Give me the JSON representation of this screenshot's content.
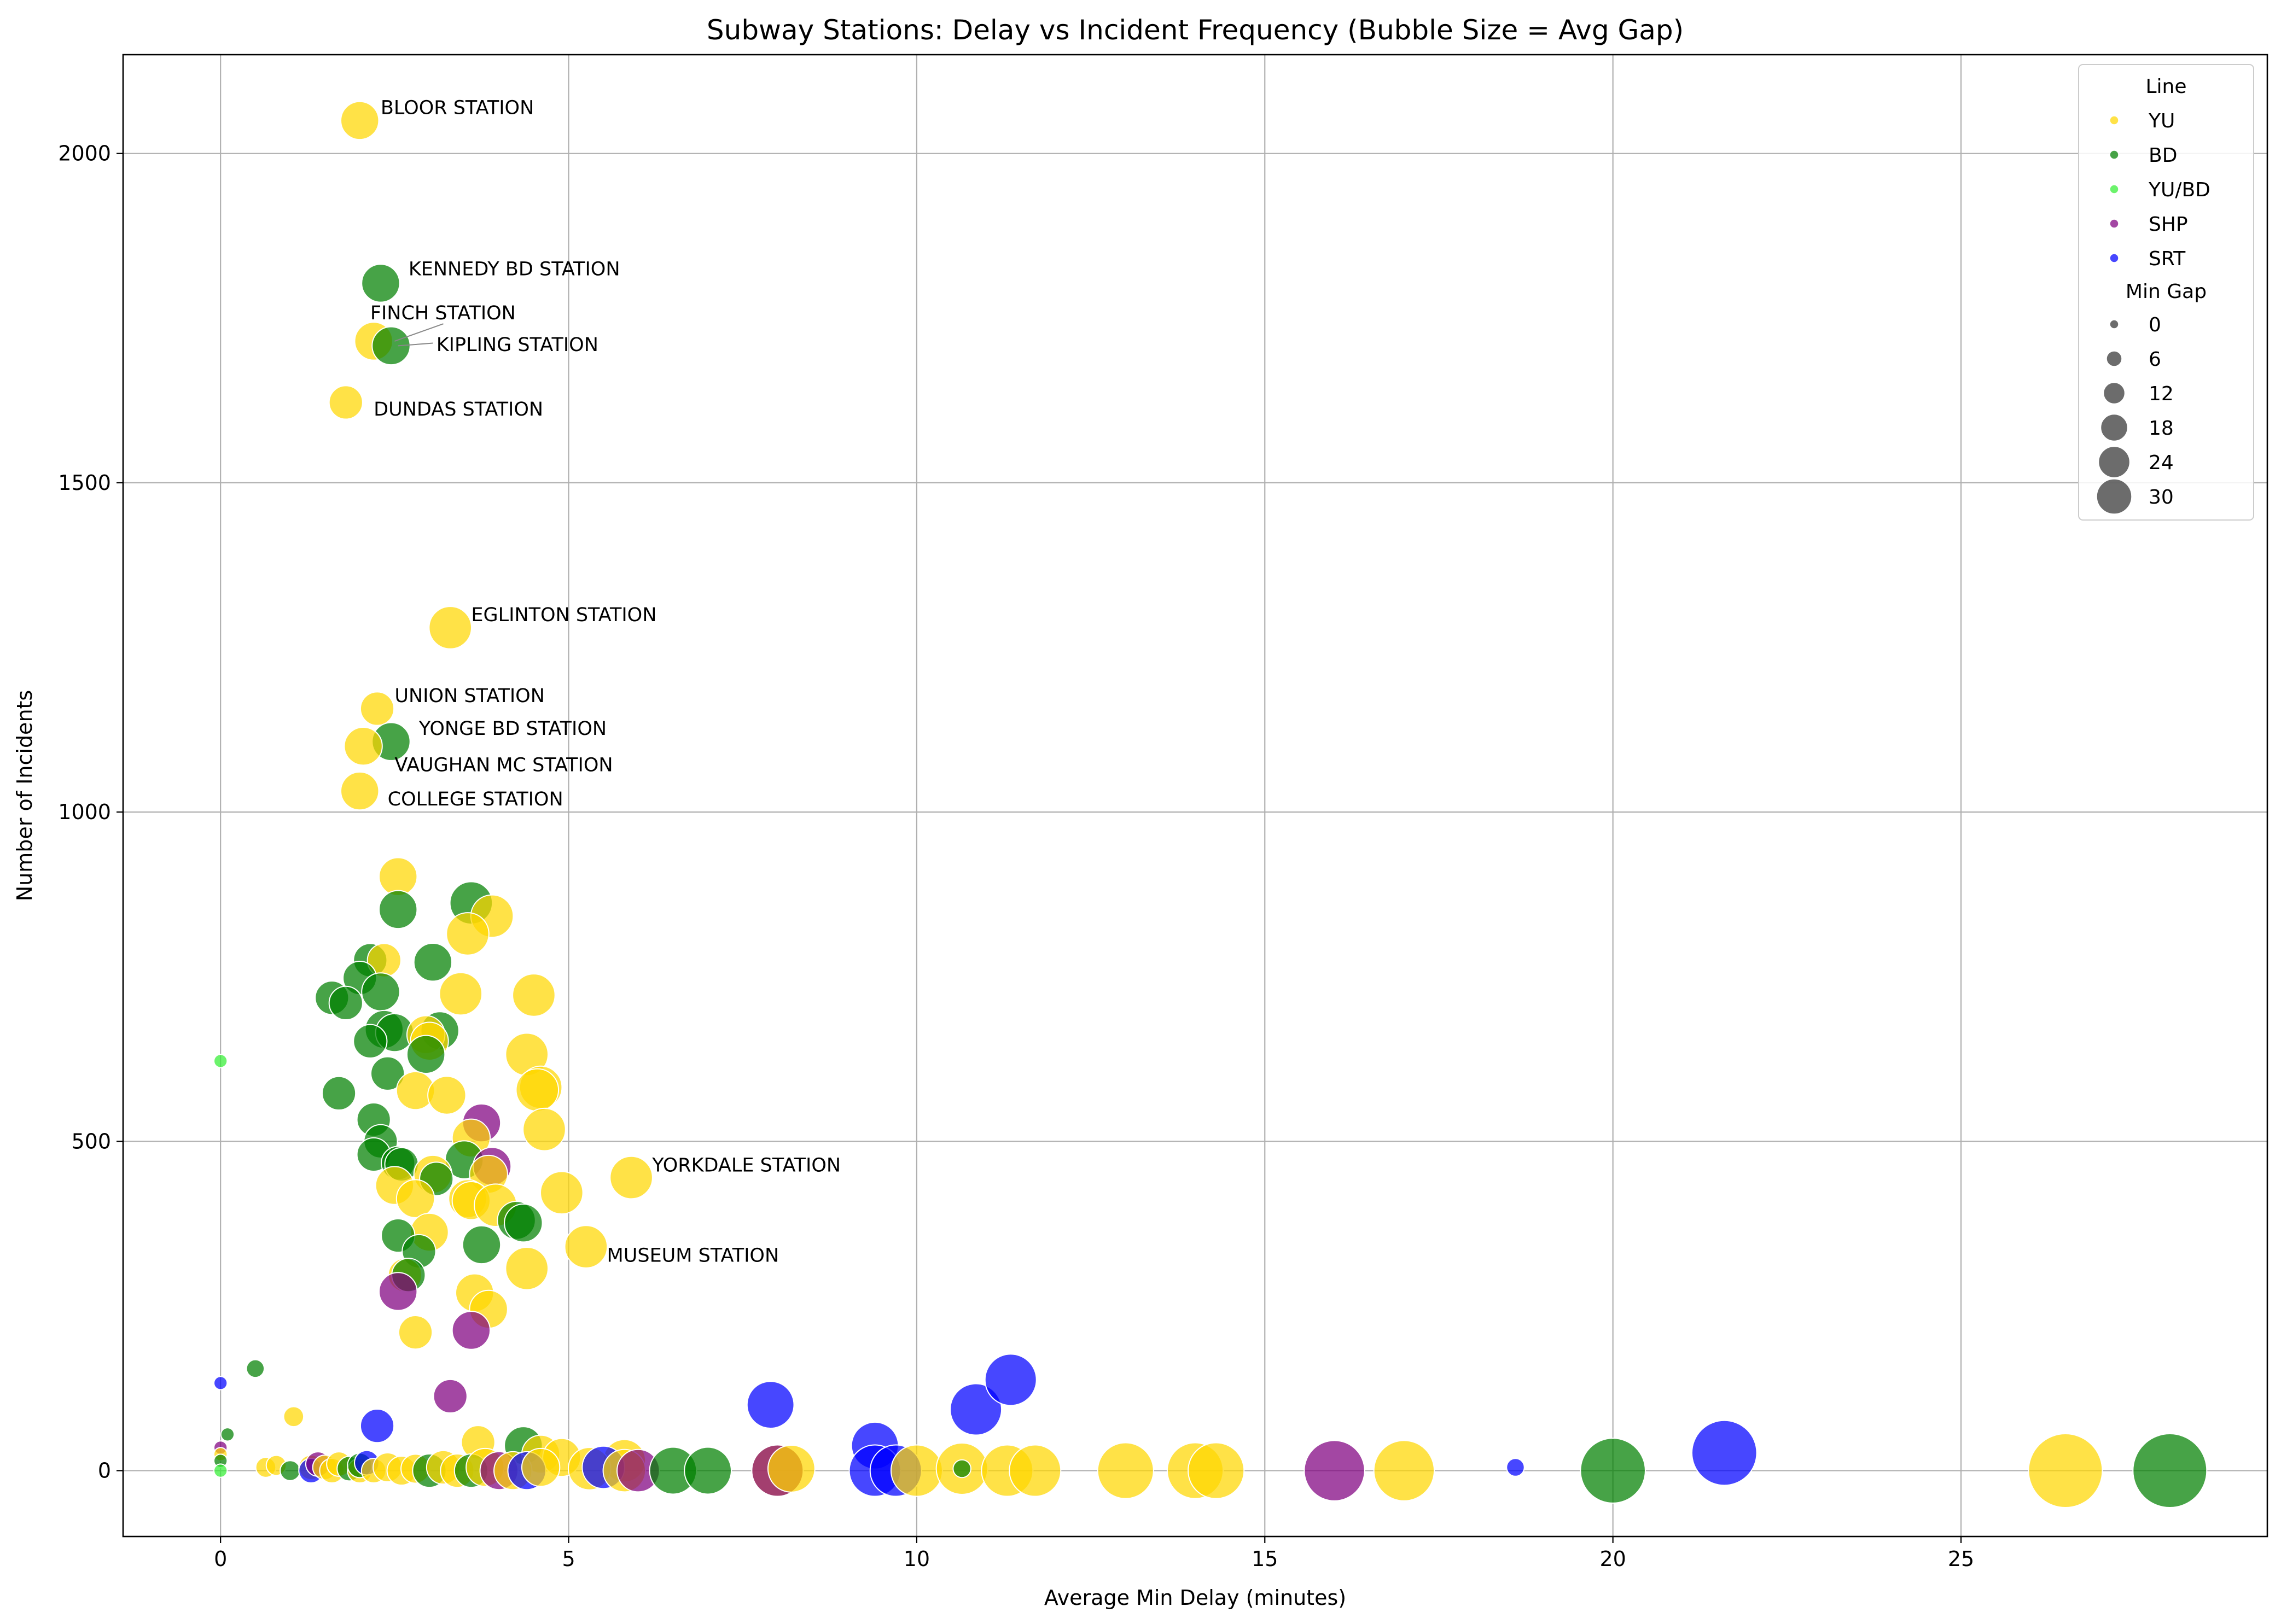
{
  "chart_data": {
    "type": "scatter",
    "title": "Subway Stations: Delay vs Incident Frequency (Bubble Size = Avg Gap)",
    "xlabel": "Average Min Delay (minutes)",
    "ylabel": "Number of Incidents",
    "xlim": [
      -1.4,
      29.4
    ],
    "ylim": [
      -100,
      2150
    ],
    "xticks": [
      0,
      5,
      10,
      15,
      20,
      25
    ],
    "yticks": [
      0,
      500,
      1000,
      1500,
      2000
    ],
    "grid": true,
    "legend_position": "top-right",
    "legend": {
      "hue_title": "Line",
      "hue_entries": [
        {
          "label": "YU",
          "color": "#FFD700"
        },
        {
          "label": "BD",
          "color": "#008000"
        },
        {
          "label": "YU/BD",
          "color": "#33EE33"
        },
        {
          "label": "SHP",
          "color": "#800080"
        },
        {
          "label": "SRT",
          "color": "#0000FF"
        }
      ],
      "size_title": "Min Gap",
      "size_entries": [
        "0",
        "6",
        "12",
        "18",
        "24",
        "30"
      ]
    },
    "colors": {
      "YU": "#FFD700",
      "BD": "#008000",
      "YU/BD": "#33EE33",
      "SHP": "#800080",
      "SRT": "#0000FF"
    },
    "annotations": [
      {
        "text": "BLOOR STATION",
        "x": 2.3,
        "y": 2070
      },
      {
        "text": "KENNEDY BD STATION",
        "x": 2.7,
        "y": 1825
      },
      {
        "text": "FINCH STATION",
        "x": 2.15,
        "y": 1758
      },
      {
        "text": "KIPLING STATION",
        "x": 3.1,
        "y": 1710
      },
      {
        "text": "DUNDAS STATION",
        "x": 2.2,
        "y": 1612
      },
      {
        "text": "EGLINTON STATION",
        "x": 3.6,
        "y": 1300
      },
      {
        "text": "UNION STATION",
        "x": 2.5,
        "y": 1177
      },
      {
        "text": "YONGE BD STATION",
        "x": 2.85,
        "y": 1127
      },
      {
        "text": "VAUGHAN MC STATION",
        "x": 2.5,
        "y": 1072
      },
      {
        "text": "COLLEGE STATION",
        "x": 2.4,
        "y": 1020
      },
      {
        "text": "YORKDALE STATION",
        "x": 6.2,
        "y": 464
      },
      {
        "text": "MUSEUM STATION",
        "x": 5.55,
        "y": 327
      }
    ],
    "points": [
      {
        "line": "YU",
        "x": 2.0,
        "y": 2050,
        "s": 7
      },
      {
        "line": "BD",
        "x": 2.3,
        "y": 1803,
        "s": 7
      },
      {
        "line": "YU",
        "x": 2.2,
        "y": 1715,
        "s": 7
      },
      {
        "line": "BD",
        "x": 2.45,
        "y": 1708,
        "s": 7
      },
      {
        "line": "YU",
        "x": 1.8,
        "y": 1622,
        "s": 6
      },
      {
        "line": "YU",
        "x": 3.3,
        "y": 1280,
        "s": 8
      },
      {
        "line": "YU",
        "x": 2.25,
        "y": 1157,
        "s": 6
      },
      {
        "line": "BD",
        "x": 2.45,
        "y": 1107,
        "s": 7
      },
      {
        "line": "YU",
        "x": 2.05,
        "y": 1100,
        "s": 7
      },
      {
        "line": "YU",
        "x": 2.0,
        "y": 1032,
        "s": 7
      },
      {
        "line": "YU",
        "x": 2.55,
        "y": 902,
        "s": 7
      },
      {
        "line": "BD",
        "x": 3.6,
        "y": 862,
        "s": 8
      },
      {
        "line": "BD",
        "x": 2.55,
        "y": 852,
        "s": 7
      },
      {
        "line": "YU",
        "x": 3.9,
        "y": 842,
        "s": 8
      },
      {
        "line": "YU",
        "x": 3.55,
        "y": 815,
        "s": 8
      },
      {
        "line": "BD",
        "x": 2.15,
        "y": 775,
        "s": 6
      },
      {
        "line": "YU",
        "x": 2.35,
        "y": 775,
        "s": 6
      },
      {
        "line": "BD",
        "x": 3.05,
        "y": 772,
        "s": 7
      },
      {
        "line": "BD",
        "x": 2.0,
        "y": 748,
        "s": 6
      },
      {
        "line": "BD",
        "x": 2.3,
        "y": 727,
        "s": 7
      },
      {
        "line": "YU",
        "x": 3.45,
        "y": 724,
        "s": 8
      },
      {
        "line": "YU",
        "x": 4.5,
        "y": 722,
        "s": 8
      },
      {
        "line": "BD",
        "x": 1.6,
        "y": 718,
        "s": 6
      },
      {
        "line": "BD",
        "x": 1.8,
        "y": 710,
        "s": 6
      },
      {
        "line": "BD",
        "x": 2.35,
        "y": 670,
        "s": 7
      },
      {
        "line": "BD",
        "x": 2.5,
        "y": 665,
        "s": 7
      },
      {
        "line": "BD",
        "x": 3.15,
        "y": 668,
        "s": 7
      },
      {
        "line": "YU",
        "x": 2.95,
        "y": 662,
        "s": 7
      },
      {
        "line": "YU",
        "x": 3.0,
        "y": 652,
        "s": 7
      },
      {
        "line": "BD",
        "x": 2.15,
        "y": 652,
        "s": 6
      },
      {
        "line": "BD",
        "x": 2.95,
        "y": 632,
        "s": 7
      },
      {
        "line": "YU",
        "x": 4.4,
        "y": 632,
        "s": 8
      },
      {
        "line": "BD",
        "x": 2.4,
        "y": 603,
        "s": 6
      },
      {
        "line": "YU",
        "x": 4.6,
        "y": 582,
        "s": 8
      },
      {
        "line": "YU",
        "x": 4.55,
        "y": 578,
        "s": 8
      },
      {
        "line": "YU",
        "x": 2.8,
        "y": 577,
        "s": 7
      },
      {
        "line": "BD",
        "x": 1.7,
        "y": 573,
        "s": 6
      },
      {
        "line": "YU",
        "x": 3.25,
        "y": 570,
        "s": 7
      },
      {
        "line": "BD",
        "x": 2.2,
        "y": 533,
        "s": 6
      },
      {
        "line": "SHP",
        "x": 3.75,
        "y": 528,
        "s": 7
      },
      {
        "line": "YU",
        "x": 4.65,
        "y": 518,
        "s": 8
      },
      {
        "line": "YU",
        "x": 3.6,
        "y": 505,
        "s": 7
      },
      {
        "line": "BD",
        "x": 2.3,
        "y": 500,
        "s": 6
      },
      {
        "line": "BD",
        "x": 2.2,
        "y": 480,
        "s": 6
      },
      {
        "line": "BD",
        "x": 3.5,
        "y": 472,
        "s": 7
      },
      {
        "line": "BD",
        "x": 2.55,
        "y": 467,
        "s": 6
      },
      {
        "line": "BD",
        "x": 2.6,
        "y": 465,
        "s": 6
      },
      {
        "line": "SHP",
        "x": 3.9,
        "y": 462,
        "s": 7
      },
      {
        "line": "YU",
        "x": 3.05,
        "y": 450,
        "s": 7
      },
      {
        "line": "YU",
        "x": 3.85,
        "y": 450,
        "s": 7
      },
      {
        "line": "BD",
        "x": 3.1,
        "y": 443,
        "s": 6
      },
      {
        "line": "YU",
        "x": 5.9,
        "y": 445,
        "s": 8
      },
      {
        "line": "YU",
        "x": 2.5,
        "y": 433,
        "s": 7
      },
      {
        "line": "YU",
        "x": 4.9,
        "y": 422,
        "s": 8
      },
      {
        "line": "YU",
        "x": 2.8,
        "y": 413,
        "s": 7
      },
      {
        "line": "YU",
        "x": 3.55,
        "y": 413,
        "s": 7
      },
      {
        "line": "YU",
        "x": 3.6,
        "y": 410,
        "s": 7
      },
      {
        "line": "YU",
        "x": 3.95,
        "y": 403,
        "s": 8
      },
      {
        "line": "BD",
        "x": 4.25,
        "y": 380,
        "s": 7
      },
      {
        "line": "BD",
        "x": 4.35,
        "y": 376,
        "s": 7
      },
      {
        "line": "YU",
        "x": 3.0,
        "y": 362,
        "s": 7
      },
      {
        "line": "BD",
        "x": 2.55,
        "y": 357,
        "s": 6
      },
      {
        "line": "BD",
        "x": 3.75,
        "y": 343,
        "s": 7
      },
      {
        "line": "YU",
        "x": 5.25,
        "y": 340,
        "s": 8
      },
      {
        "line": "BD",
        "x": 2.85,
        "y": 333,
        "s": 6
      },
      {
        "line": "YU",
        "x": 4.4,
        "y": 307,
        "s": 8
      },
      {
        "line": "YU",
        "x": 2.65,
        "y": 297,
        "s": 6
      },
      {
        "line": "BD",
        "x": 2.7,
        "y": 297,
        "s": 6
      },
      {
        "line": "SHP",
        "x": 2.55,
        "y": 272,
        "s": 7
      },
      {
        "line": "YU",
        "x": 3.65,
        "y": 270,
        "s": 7
      },
      {
        "line": "YU",
        "x": 3.85,
        "y": 245,
        "s": 7
      },
      {
        "line": "SHP",
        "x": 3.6,
        "y": 213,
        "s": 7
      },
      {
        "line": "YU",
        "x": 2.8,
        "y": 210,
        "s": 6
      },
      {
        "line": "BD",
        "x": 0.1,
        "y": 55,
        "s": 1.5
      },
      {
        "line": "BD",
        "x": 0.5,
        "y": 155,
        "s": 2.5
      },
      {
        "line": "SRT",
        "x": 0.0,
        "y": 133,
        "s": 1.5
      },
      {
        "line": "SHP",
        "x": 3.3,
        "y": 113,
        "s": 6
      },
      {
        "line": "YU",
        "x": 1.05,
        "y": 82,
        "s": 3
      },
      {
        "line": "YU/BD",
        "x": 0.0,
        "y": 622,
        "s": 1.5
      },
      {
        "line": "SRT",
        "x": 7.9,
        "y": 100,
        "s": 9
      },
      {
        "line": "SRT",
        "x": 10.85,
        "y": 93,
        "s": 10
      },
      {
        "line": "SRT",
        "x": 11.35,
        "y": 138,
        "s": 10
      },
      {
        "line": "SRT",
        "x": 2.25,
        "y": 68,
        "s": 6
      },
      {
        "line": "YU",
        "x": 3.7,
        "y": 43,
        "s": 6
      },
      {
        "line": "BD",
        "x": 4.35,
        "y": 38,
        "s": 7
      },
      {
        "line": "SRT",
        "x": 9.4,
        "y": 38,
        "s": 9
      },
      {
        "line": "SRT",
        "x": 21.6,
        "y": 27,
        "s": 13
      },
      {
        "line": "YU",
        "x": 4.6,
        "y": 25,
        "s": 7
      },
      {
        "line": "YU",
        "x": 4.9,
        "y": 20,
        "s": 7
      },
      {
        "line": "YU",
        "x": 5.8,
        "y": 15,
        "s": 8
      },
      {
        "line": "SHP",
        "x": 0.0,
        "y": 35,
        "s": 1.5
      },
      {
        "line": "YU",
        "x": 0.0,
        "y": 25,
        "s": 1.5
      },
      {
        "line": "BD",
        "x": 0.0,
        "y": 15,
        "s": 1.5
      },
      {
        "line": "YU/BD",
        "x": 0.0,
        "y": 0,
        "s": 1.5
      },
      {
        "line": "YU",
        "x": 0.65,
        "y": 5,
        "s": 3
      },
      {
        "line": "YU",
        "x": 0.8,
        "y": 8,
        "s": 3
      },
      {
        "line": "BD",
        "x": 1.0,
        "y": 0,
        "s": 3
      },
      {
        "line": "YU",
        "x": 1.3,
        "y": 5,
        "s": 4
      },
      {
        "line": "SRT",
        "x": 1.3,
        "y": 0,
        "s": 4
      },
      {
        "line": "SHP",
        "x": 1.4,
        "y": 10,
        "s": 4
      },
      {
        "line": "YU",
        "x": 1.5,
        "y": 5,
        "s": 4
      },
      {
        "line": "YU",
        "x": 1.6,
        "y": 0,
        "s": 4
      },
      {
        "line": "YU",
        "x": 1.7,
        "y": 10,
        "s": 4
      },
      {
        "line": "BD",
        "x": 1.85,
        "y": 3,
        "s": 4
      },
      {
        "line": "YU",
        "x": 2.0,
        "y": 0,
        "s": 4
      },
      {
        "line": "BD",
        "x": 2.0,
        "y": 8,
        "s": 4
      },
      {
        "line": "SRT",
        "x": 2.1,
        "y": 12,
        "s": 4
      },
      {
        "line": "YU",
        "x": 2.2,
        "y": 0,
        "s": 4
      },
      {
        "line": "YU",
        "x": 2.4,
        "y": 5,
        "s": 5
      },
      {
        "line": "YU",
        "x": 2.6,
        "y": 0,
        "s": 5
      },
      {
        "line": "YU",
        "x": 2.8,
        "y": 3,
        "s": 5
      },
      {
        "line": "BD",
        "x": 3.0,
        "y": 0,
        "s": 6
      },
      {
        "line": "YU",
        "x": 3.2,
        "y": 5,
        "s": 6
      },
      {
        "line": "YU",
        "x": 3.4,
        "y": 0,
        "s": 6
      },
      {
        "line": "BD",
        "x": 3.6,
        "y": 0,
        "s": 6
      },
      {
        "line": "YU",
        "x": 3.8,
        "y": 5,
        "s": 7
      },
      {
        "line": "SHP",
        "x": 4.0,
        "y": 0,
        "s": 7
      },
      {
        "line": "YU",
        "x": 4.2,
        "y": 0,
        "s": 7
      },
      {
        "line": "SRT",
        "x": 4.4,
        "y": 0,
        "s": 7
      },
      {
        "line": "YU",
        "x": 4.6,
        "y": 5,
        "s": 7
      },
      {
        "line": "YU",
        "x": 5.3,
        "y": 3,
        "s": 8
      },
      {
        "line": "SRT",
        "x": 5.5,
        "y": 5,
        "s": 8
      },
      {
        "line": "YU",
        "x": 5.8,
        "y": 0,
        "s": 8
      },
      {
        "line": "SHP",
        "x": 6.0,
        "y": 0,
        "s": 8
      },
      {
        "line": "BD",
        "x": 6.5,
        "y": 0,
        "s": 9
      },
      {
        "line": "BD",
        "x": 7.0,
        "y": 0,
        "s": 9
      },
      {
        "line": "YU",
        "x": 8.0,
        "y": 0,
        "s": 10
      },
      {
        "line": "SHP",
        "x": 8.0,
        "y": 0,
        "s": 10
      },
      {
        "line": "YU",
        "x": 8.2,
        "y": 3,
        "s": 9
      },
      {
        "line": "SRT",
        "x": 9.4,
        "y": 0,
        "s": 10
      },
      {
        "line": "SRT",
        "x": 9.7,
        "y": 0,
        "s": 10
      },
      {
        "line": "YU",
        "x": 10.0,
        "y": 0,
        "s": 10
      },
      {
        "line": "YU",
        "x": 10.65,
        "y": 3,
        "s": 10
      },
      {
        "line": "BD",
        "x": 10.65,
        "y": 3,
        "s": 2.5
      },
      {
        "line": "YU",
        "x": 11.3,
        "y": 0,
        "s": 10
      },
      {
        "line": "YU",
        "x": 11.7,
        "y": 0,
        "s": 10
      },
      {
        "line": "YU",
        "x": 13.0,
        "y": 0,
        "s": 11
      },
      {
        "line": "YU",
        "x": 14.0,
        "y": 0,
        "s": 11
      },
      {
        "line": "YU",
        "x": 14.3,
        "y": 0,
        "s": 11
      },
      {
        "line": "SHP",
        "x": 16.0,
        "y": 0,
        "s": 12
      },
      {
        "line": "YU",
        "x": 17.0,
        "y": 0,
        "s": 12
      },
      {
        "line": "SRT",
        "x": 18.6,
        "y": 5,
        "s": 2.5
      },
      {
        "line": "BD",
        "x": 20.0,
        "y": 0,
        "s": 13
      },
      {
        "line": "YU",
        "x": 26.5,
        "y": 0,
        "s": 15
      },
      {
        "line": "BD",
        "x": 28.0,
        "y": 0,
        "s": 15
      }
    ]
  }
}
